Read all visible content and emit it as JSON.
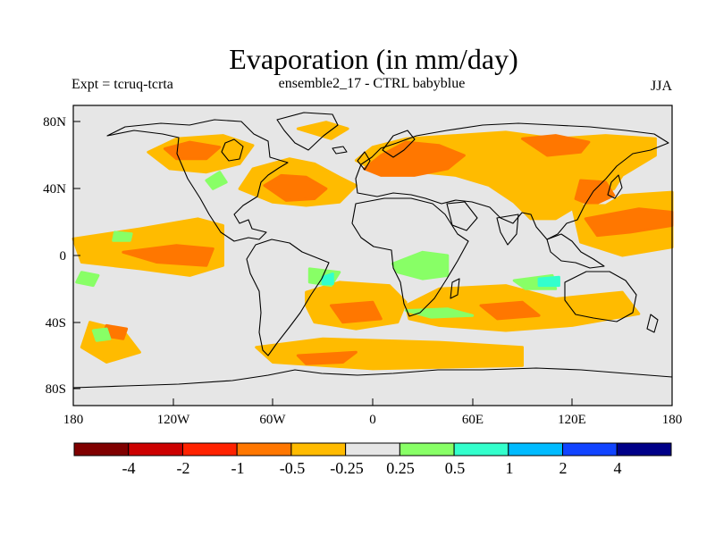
{
  "chart_data": {
    "type": "heatmap",
    "title": "Evaporation (in mm/day)",
    "left_label": "Expt = tcruq-tcrta",
    "center_label": "ensemble2_17 - CTRL babyblue",
    "right_label": "JJA",
    "x_ticks": [
      "180",
      "120W",
      "60W",
      "0",
      "60E",
      "120E",
      "180"
    ],
    "y_ticks": [
      "80N",
      "40N",
      "0",
      "40S",
      "80S"
    ],
    "colorbar": {
      "colors": [
        "#800000",
        "#cc0000",
        "#ff2200",
        "#ff7700",
        "#ffbb00",
        "#e6e6e6",
        "#88ff66",
        "#33ffcc",
        "#00bbff",
        "#1144ff",
        "#000088"
      ],
      "labels": [
        "-4",
        "-2",
        "-1",
        "-0.5",
        "-0.25",
        "0.25",
        "0.5",
        "1",
        "2",
        "4"
      ]
    },
    "regions": [
      {
        "name": "central-pacific-orange-blob",
        "color": "#ffbb00",
        "lon_lat": [
          [
            180,
            38
          ],
          [
            150,
            36
          ],
          [
            140,
            30
          ],
          [
            132,
            22
          ],
          [
            140,
            12
          ],
          [
            150,
            14
          ],
          [
            160,
            20
          ],
          [
            175,
            14
          ],
          [
            180,
            16
          ]
        ]
      },
      {
        "name": "north-atlantic-orange",
        "color": "#ffbb00",
        "lon_lat": [
          [
            -80,
            40
          ],
          [
            -72,
            52
          ],
          [
            -50,
            58
          ],
          [
            -35,
            55
          ],
          [
            -20,
            47
          ],
          [
            -10,
            42
          ],
          [
            -20,
            32
          ],
          [
            -40,
            30
          ],
          [
            -60,
            32
          ]
        ]
      },
      {
        "name": "north-atlantic-dark",
        "color": "#ff7700",
        "lon_lat": [
          [
            -65,
            42
          ],
          [
            -55,
            48
          ],
          [
            -40,
            47
          ],
          [
            -28,
            40
          ],
          [
            -35,
            34
          ],
          [
            -52,
            33
          ]
        ]
      },
      {
        "name": "eurasia-orange",
        "color": "#ffbb00",
        "lon_lat": [
          [
            -10,
            57
          ],
          [
            0,
            65
          ],
          [
            20,
            70
          ],
          [
            50,
            72
          ],
          [
            80,
            74
          ],
          [
            110,
            70
          ],
          [
            140,
            72
          ],
          [
            170,
            70
          ],
          [
            170,
            60
          ],
          [
            150,
            48
          ],
          [
            145,
            40
          ],
          [
            130,
            34
          ],
          [
            110,
            22
          ],
          [
            95,
            22
          ],
          [
            85,
            32
          ],
          [
            70,
            42
          ],
          [
            50,
            48
          ],
          [
            30,
            50
          ],
          [
            15,
            50
          ],
          [
            0,
            52
          ]
        ]
      },
      {
        "name": "europe-dark",
        "color": "#ff7700",
        "lon_lat": [
          [
            -5,
            52
          ],
          [
            5,
            60
          ],
          [
            20,
            68
          ],
          [
            40,
            66
          ],
          [
            55,
            60
          ],
          [
            45,
            52
          ],
          [
            25,
            48
          ],
          [
            5,
            48
          ]
        ]
      },
      {
        "name": "siberia-dark",
        "color": "#ff7700",
        "lon_lat": [
          [
            90,
            70
          ],
          [
            110,
            72
          ],
          [
            130,
            68
          ],
          [
            125,
            62
          ],
          [
            105,
            60
          ]
        ]
      },
      {
        "name": "east-asia-dark",
        "color": "#ff7700",
        "lon_lat": [
          [
            125,
            45
          ],
          [
            140,
            44
          ],
          [
            145,
            36
          ],
          [
            132,
            30
          ],
          [
            122,
            34
          ]
        ]
      },
      {
        "name": "west-pacific-orange",
        "color": "#ffbb00",
        "lon_lat": [
          [
            120,
            30
          ],
          [
            180,
            30
          ],
          [
            180,
            5
          ],
          [
            150,
            0
          ],
          [
            125,
            8
          ]
        ]
      },
      {
        "name": "west-pacific-dark",
        "color": "#ff7700",
        "lon_lat": [
          [
            128,
            22
          ],
          [
            160,
            28
          ],
          [
            180,
            26
          ],
          [
            180,
            18
          ],
          [
            155,
            14
          ],
          [
            135,
            12
          ]
        ]
      },
      {
        "name": "eastern-pacific-orange",
        "color": "#ffbb00",
        "lon_lat": [
          [
            -180,
            10
          ],
          [
            -140,
            16
          ],
          [
            -105,
            22
          ],
          [
            -90,
            18
          ],
          [
            -90,
            -6
          ],
          [
            -110,
            -12
          ],
          [
            -140,
            -8
          ],
          [
            -175,
            -4
          ]
        ]
      },
      {
        "name": "eastern-pacific-dark",
        "color": "#ff7700",
        "lon_lat": [
          [
            -150,
            2
          ],
          [
            -118,
            6
          ],
          [
            -96,
            4
          ],
          [
            -100,
            -6
          ],
          [
            -130,
            -4
          ]
        ]
      },
      {
        "name": "north-america-orange",
        "color": "#ffbb00",
        "lon_lat": [
          [
            -135,
            62
          ],
          [
            -118,
            70
          ],
          [
            -90,
            72
          ],
          [
            -72,
            66
          ],
          [
            -80,
            55
          ],
          [
            -100,
            50
          ],
          [
            -122,
            52
          ]
        ]
      },
      {
        "name": "north-america-dark",
        "color": "#ff7700",
        "lon_lat": [
          [
            -125,
            64
          ],
          [
            -110,
            68
          ],
          [
            -92,
            65
          ],
          [
            -100,
            58
          ],
          [
            -118,
            58
          ]
        ]
      },
      {
        "name": "greenland-orange",
        "color": "#ffbb00",
        "lon_lat": [
          [
            -45,
            76
          ],
          [
            -28,
            80
          ],
          [
            -15,
            76
          ],
          [
            -25,
            70
          ]
        ]
      },
      {
        "name": "south-atlantic-orange",
        "color": "#ffbb00",
        "lon_lat": [
          [
            -40,
            -22
          ],
          [
            -20,
            -16
          ],
          [
            10,
            -18
          ],
          [
            20,
            -28
          ],
          [
            15,
            -40
          ],
          [
            -10,
            -44
          ],
          [
            -35,
            -40
          ],
          [
            -40,
            -30
          ]
        ]
      },
      {
        "name": "south-atlantic-dark",
        "color": "#ff7700",
        "lon_lat": [
          [
            -25,
            -30
          ],
          [
            0,
            -28
          ],
          [
            5,
            -38
          ],
          [
            -18,
            -40
          ]
        ]
      },
      {
        "name": "southern-indian-orange",
        "color": "#ffbb00",
        "lon_lat": [
          [
            20,
            -30
          ],
          [
            40,
            -20
          ],
          [
            80,
            -18
          ],
          [
            110,
            -26
          ],
          [
            150,
            -22
          ],
          [
            160,
            -35
          ],
          [
            120,
            -42
          ],
          [
            80,
            -45
          ],
          [
            40,
            -42
          ],
          [
            22,
            -38
          ]
        ]
      },
      {
        "name": "southern-indian-dark",
        "color": "#ff7700",
        "lon_lat": [
          [
            65,
            -30
          ],
          [
            90,
            -28
          ],
          [
            100,
            -36
          ],
          [
            75,
            -38
          ]
        ]
      },
      {
        "name": "southern-ocean-orange",
        "color": "#ffbb00",
        "lon_lat": [
          [
            -70,
            -55
          ],
          [
            -30,
            -50
          ],
          [
            40,
            -52
          ],
          [
            90,
            -55
          ],
          [
            90,
            -66
          ],
          [
            0,
            -68
          ],
          [
            -60,
            -64
          ]
        ]
      },
      {
        "name": "southern-ocean-dark",
        "color": "#ff7700",
        "lon_lat": [
          [
            -45,
            -60
          ],
          [
            -10,
            -58
          ],
          [
            -18,
            -64
          ],
          [
            -40,
            -65
          ]
        ]
      },
      {
        "name": "south-pacific-orange",
        "color": "#ffbb00",
        "lon_lat": [
          [
            -170,
            -40
          ],
          [
            -150,
            -45
          ],
          [
            -140,
            -58
          ],
          [
            -160,
            -64
          ],
          [
            -175,
            -55
          ]
        ]
      },
      {
        "name": "south-pacific-dark",
        "color": "#ff7700",
        "lon_lat": [
          [
            -160,
            -42
          ],
          [
            -148,
            -44
          ],
          [
            -150,
            -50
          ],
          [
            -162,
            -48
          ]
        ]
      },
      {
        "name": "central-africa-green",
        "color": "#88ff66",
        "lon_lat": [
          [
            12,
            -5
          ],
          [
            30,
            2
          ],
          [
            45,
            0
          ],
          [
            45,
            -12
          ],
          [
            30,
            -14
          ],
          [
            15,
            -10
          ]
        ]
      },
      {
        "name": "south-africa-green",
        "color": "#88ff66",
        "lon_lat": [
          [
            20,
            -33
          ],
          [
            45,
            -32
          ],
          [
            60,
            -36
          ],
          [
            35,
            -37
          ]
        ]
      },
      {
        "name": "indian-ocean-green",
        "color": "#88ff66",
        "lon_lat": [
          [
            85,
            -15
          ],
          [
            108,
            -12
          ],
          [
            110,
            -20
          ],
          [
            92,
            -20
          ]
        ]
      },
      {
        "name": "north-america-green",
        "color": "#88ff66",
        "lon_lat": [
          [
            -100,
            45
          ],
          [
            -92,
            50
          ],
          [
            -88,
            44
          ],
          [
            -96,
            40
          ]
        ]
      },
      {
        "name": "atlantic-south-green",
        "color": "#88ff66",
        "lon_lat": [
          [
            -38,
            -8
          ],
          [
            -20,
            -10
          ],
          [
            -25,
            -18
          ],
          [
            -38,
            -16
          ]
        ]
      },
      {
        "name": "pacific-west-green",
        "color": "#88ff66",
        "lon_lat": [
          [
            -175,
            -10
          ],
          [
            -165,
            -12
          ],
          [
            -168,
            -18
          ],
          [
            -178,
            -16
          ]
        ]
      },
      {
        "name": "pacific-central-green",
        "color": "#88ff66",
        "lon_lat": [
          [
            -155,
            14
          ],
          [
            -145,
            13
          ],
          [
            -146,
            9
          ],
          [
            -156,
            9
          ]
        ]
      },
      {
        "name": "south-pacific-green",
        "color": "#88ff66",
        "lon_lat": [
          [
            -168,
            -45
          ],
          [
            -160,
            -44
          ],
          [
            -158,
            -50
          ],
          [
            -166,
            -51
          ]
        ]
      },
      {
        "name": "indian-ocean-cyan",
        "color": "#33ffcc",
        "lon_lat": [
          [
            -30,
            -13
          ],
          [
            -24,
            -11
          ],
          [
            -24,
            -17
          ],
          [
            -30,
            -17
          ]
        ]
      },
      {
        "name": "java-cyan",
        "color": "#33ffcc",
        "lon_lat": [
          [
            100,
            -14
          ],
          [
            112,
            -13
          ],
          [
            112,
            -18
          ],
          [
            100,
            -18
          ]
        ]
      }
    ]
  }
}
